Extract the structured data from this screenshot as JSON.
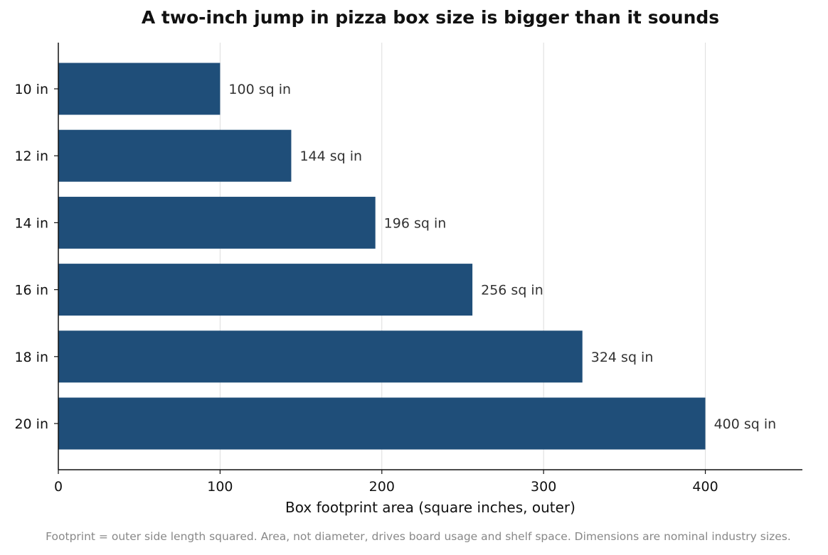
{
  "chart_data": {
    "type": "bar",
    "orientation": "horizontal",
    "title": "A two-inch jump in pizza box size is bigger than it sounds",
    "categories": [
      "10 in",
      "12 in",
      "14 in",
      "16 in",
      "18 in",
      "20 in"
    ],
    "values": [
      100,
      144,
      196,
      256,
      324,
      400
    ],
    "data_labels": [
      "100 sq in",
      "144 sq in",
      "196 sq in",
      "256 sq in",
      "324 sq in",
      "400 sq in"
    ],
    "xlabel": "Box footprint area (square inches, outer)",
    "ylabel": "",
    "xlim": [
      0,
      460
    ],
    "xticks": [
      0,
      100,
      200,
      300,
      400
    ],
    "grid": "vertical",
    "bar_color": "#1f4e79",
    "footnote": "Footprint = outer side length squared. Area, not diameter, drives board usage and shelf space. Dimensions are nominal industry sizes."
  }
}
